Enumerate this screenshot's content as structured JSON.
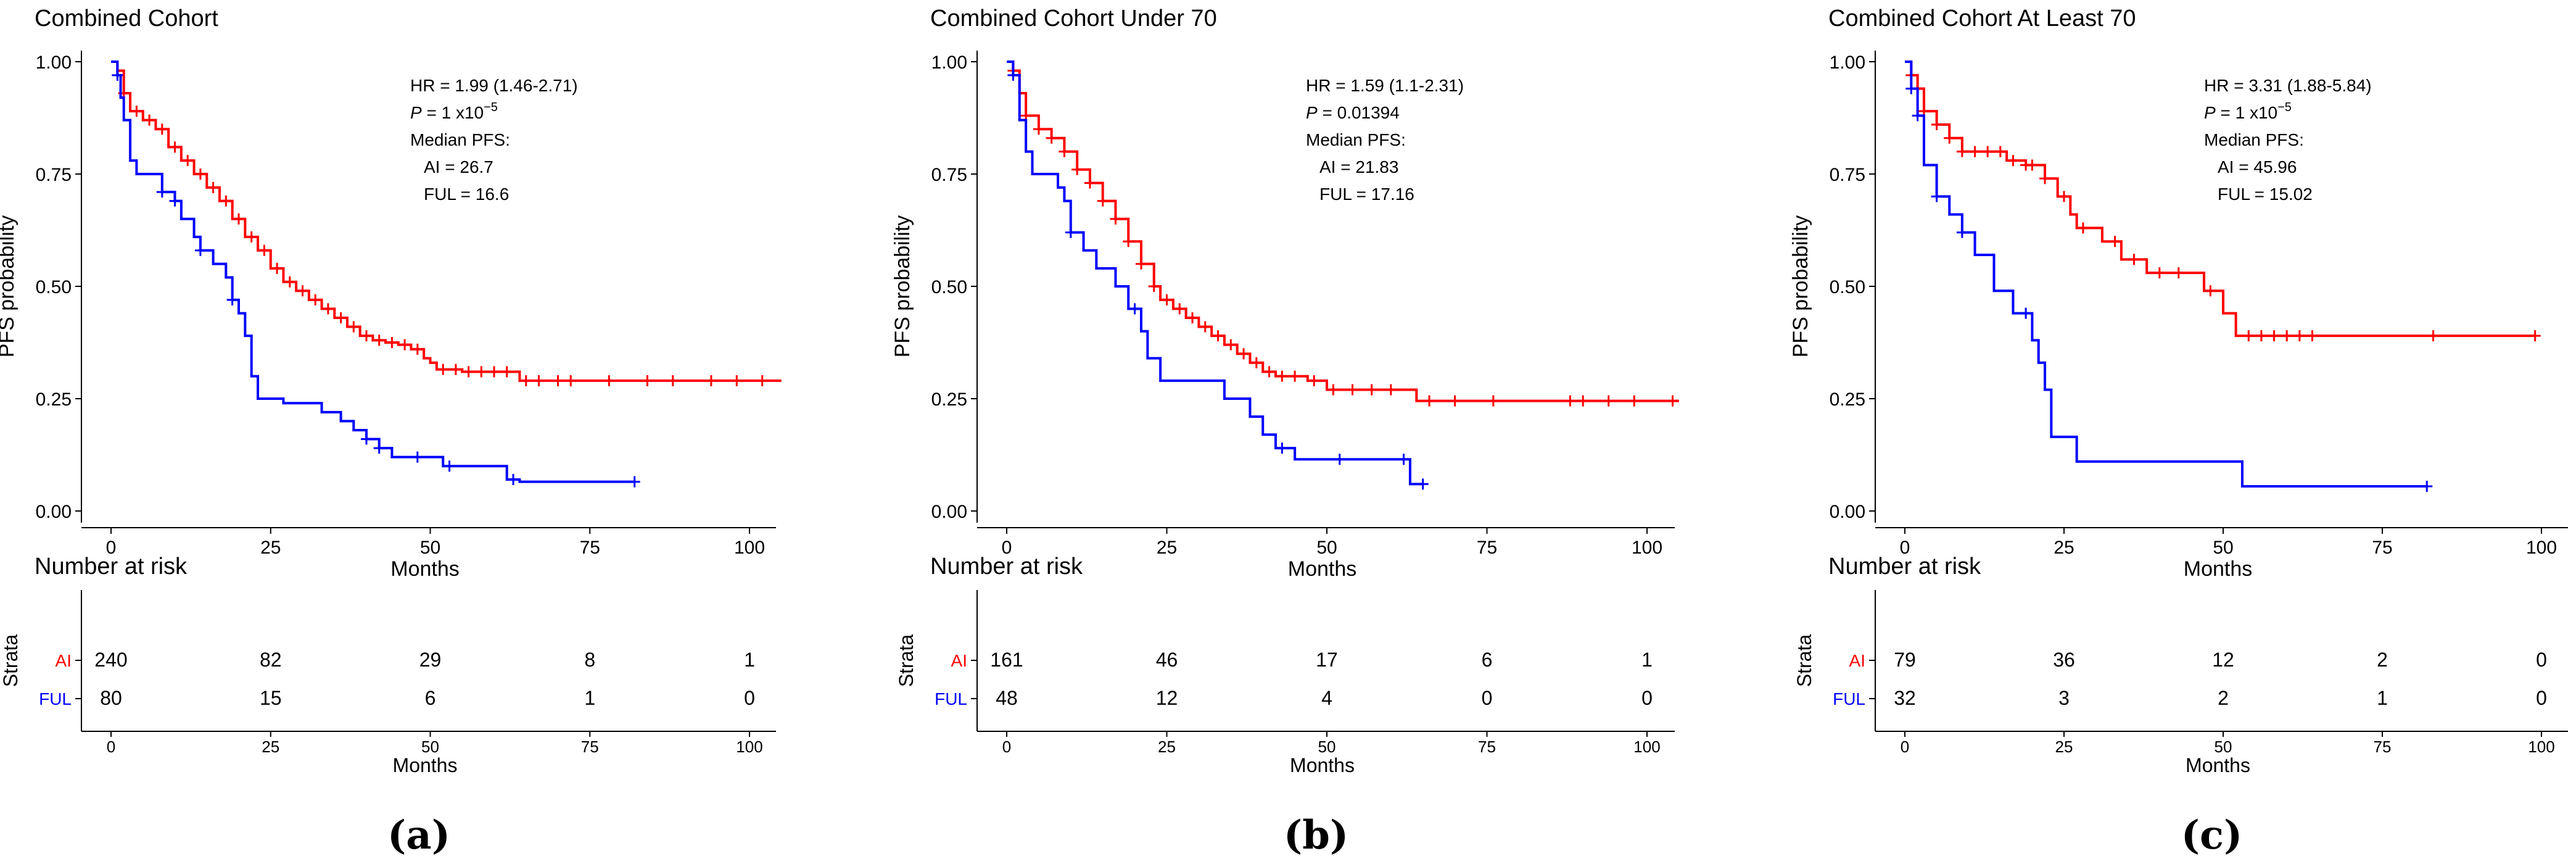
{
  "colors": {
    "AI": "#ff0000",
    "FUL": "#0000ff",
    "axis": "#000000"
  },
  "chart_data": [
    {
      "type": "line",
      "panel": "(a)",
      "title": "Combined Cohort",
      "xlabel": "Months",
      "ylabel": "PFS probability",
      "xlim": [
        0,
        105
      ],
      "ylim": [
        0,
        1
      ],
      "x_ticks": [
        "0",
        "25",
        "50",
        "75",
        "100"
      ],
      "y_ticks": [
        "0.00",
        "0.25",
        "0.50",
        "0.75",
        "1.00"
      ],
      "annotation": {
        "hr": "HR = 1.99 (1.46-2.71)",
        "p_label": "P",
        "p_value": " = 1 x10",
        "p_exp": "−5",
        "median_label": "Median PFS:",
        "ai_line": "AI  = 26.7",
        "ful_line": "FUL  = 16.6"
      },
      "series": [
        {
          "name": "AI",
          "color": "#ff0000",
          "steps": [
            [
              0,
              1
            ],
            [
              1,
              0.98
            ],
            [
              2,
              0.93
            ],
            [
              3,
              0.89
            ],
            [
              5,
              0.87
            ],
            [
              7,
              0.85
            ],
            [
              9,
              0.81
            ],
            [
              11,
              0.78
            ],
            [
              13,
              0.75
            ],
            [
              15,
              0.72
            ],
            [
              17,
              0.69
            ],
            [
              19,
              0.65
            ],
            [
              21,
              0.61
            ],
            [
              23,
              0.58
            ],
            [
              25,
              0.54
            ],
            [
              27,
              0.51
            ],
            [
              29,
              0.49
            ],
            [
              31,
              0.47
            ],
            [
              33,
              0.45
            ],
            [
              35,
              0.43
            ],
            [
              37,
              0.41
            ],
            [
              39,
              0.39
            ],
            [
              41,
              0.38
            ],
            [
              43,
              0.375
            ],
            [
              45,
              0.37
            ],
            [
              47,
              0.36
            ],
            [
              49,
              0.34
            ],
            [
              50,
              0.33
            ],
            [
              51,
              0.315
            ],
            [
              55,
              0.31
            ],
            [
              63,
              0.31
            ],
            [
              64,
              0.29
            ],
            [
              105,
              0.29
            ]
          ],
          "censors": [
            2,
            4,
            6,
            8,
            10,
            12,
            14,
            16,
            18,
            20,
            22,
            24,
            26,
            28,
            30,
            32,
            34,
            36,
            38,
            40,
            42,
            44,
            46,
            48,
            52,
            54,
            56,
            58,
            60,
            62,
            65,
            67,
            70,
            72,
            78,
            84,
            88,
            94,
            98,
            102
          ]
        },
        {
          "name": "FUL",
          "color": "#0000ff",
          "steps": [
            [
              0,
              1
            ],
            [
              1,
              0.97
            ],
            [
              1.5,
              0.92
            ],
            [
              2,
              0.87
            ],
            [
              3,
              0.78
            ],
            [
              4,
              0.75
            ],
            [
              8,
              0.71
            ],
            [
              10,
              0.69
            ],
            [
              11,
              0.65
            ],
            [
              13,
              0.61
            ],
            [
              14,
              0.58
            ],
            [
              16,
              0.55
            ],
            [
              18,
              0.52
            ],
            [
              19,
              0.47
            ],
            [
              20,
              0.44
            ],
            [
              21,
              0.39
            ],
            [
              22,
              0.3
            ],
            [
              23,
              0.25
            ],
            [
              27,
              0.24
            ],
            [
              33,
              0.22
            ],
            [
              36,
              0.2
            ],
            [
              38,
              0.18
            ],
            [
              40,
              0.16
            ],
            [
              42,
              0.14
            ],
            [
              44,
              0.12
            ],
            [
              52,
              0.1
            ],
            [
              62,
              0.07
            ],
            [
              64,
              0.065
            ],
            [
              82,
              0.065
            ]
          ],
          "censors": [
            1,
            8,
            10,
            14,
            19,
            40,
            42,
            48,
            53,
            63,
            82
          ]
        }
      ],
      "risk_table": {
        "title": "Number at risk",
        "strata_label": "Strata",
        "xlabel": "Months",
        "rows": [
          {
            "name": "AI",
            "values": [
              "240",
              "82",
              "29",
              "8",
              "1"
            ]
          },
          {
            "name": "FUL",
            "values": [
              "80",
              "15",
              "6",
              "1",
              "0"
            ]
          }
        ]
      }
    },
    {
      "type": "line",
      "panel": "(b)",
      "title": "Combined Cohort Under 70",
      "xlabel": "Months",
      "ylabel": "PFS probability",
      "xlim": [
        0,
        105
      ],
      "ylim": [
        0,
        1
      ],
      "x_ticks": [
        "0",
        "25",
        "50",
        "75",
        "100"
      ],
      "y_ticks": [
        "0.00",
        "0.25",
        "0.50",
        "0.75",
        "1.00"
      ],
      "annotation": {
        "hr": "HR = 1.59 (1.1-2.31)",
        "p_label": "P",
        "p_value": " = 0.01394",
        "p_exp": "",
        "median_label": "Median PFS:",
        "ai_line": "AI  = 21.83",
        "ful_line": "FUL  = 17.16"
      },
      "series": [
        {
          "name": "AI",
          "color": "#ff0000",
          "steps": [
            [
              0,
              1
            ],
            [
              1,
              0.98
            ],
            [
              2,
              0.93
            ],
            [
              3,
              0.88
            ],
            [
              5,
              0.85
            ],
            [
              7,
              0.83
            ],
            [
              9,
              0.8
            ],
            [
              11,
              0.76
            ],
            [
              13,
              0.73
            ],
            [
              15,
              0.69
            ],
            [
              17,
              0.65
            ],
            [
              19,
              0.6
            ],
            [
              21,
              0.55
            ],
            [
              23,
              0.5
            ],
            [
              24,
              0.47
            ],
            [
              26,
              0.45
            ],
            [
              28,
              0.43
            ],
            [
              30,
              0.41
            ],
            [
              32,
              0.39
            ],
            [
              34,
              0.37
            ],
            [
              36,
              0.35
            ],
            [
              38,
              0.33
            ],
            [
              40,
              0.31
            ],
            [
              42,
              0.3
            ],
            [
              47,
              0.29
            ],
            [
              50,
              0.27
            ],
            [
              63,
              0.27
            ],
            [
              64,
              0.245
            ],
            [
              105,
              0.245
            ]
          ],
          "censors": [
            1,
            3,
            5,
            7,
            9,
            11,
            13,
            15,
            17,
            19,
            21,
            23,
            25,
            27,
            29,
            31,
            33,
            35,
            37,
            39,
            41,
            43,
            45,
            48,
            51,
            54,
            57,
            60,
            66,
            70,
            76,
            88,
            90,
            94,
            98,
            104
          ]
        },
        {
          "name": "FUL",
          "color": "#0000ff",
          "steps": [
            [
              0,
              1
            ],
            [
              1,
              0.97
            ],
            [
              2,
              0.87
            ],
            [
              3,
              0.8
            ],
            [
              4,
              0.75
            ],
            [
              8,
              0.72
            ],
            [
              9,
              0.69
            ],
            [
              10,
              0.62
            ],
            [
              12,
              0.58
            ],
            [
              14,
              0.54
            ],
            [
              17,
              0.5
            ],
            [
              19,
              0.45
            ],
            [
              21,
              0.4
            ],
            [
              22,
              0.34
            ],
            [
              24,
              0.29
            ],
            [
              34,
              0.25
            ],
            [
              38,
              0.21
            ],
            [
              40,
              0.17
            ],
            [
              42,
              0.14
            ],
            [
              45,
              0.115
            ],
            [
              62,
              0.115
            ],
            [
              63,
              0.06
            ],
            [
              65,
              0.06
            ]
          ],
          "censors": [
            1,
            10,
            20,
            43,
            52,
            62,
            65
          ]
        }
      ],
      "risk_table": {
        "title": "Number at risk",
        "strata_label": "Strata",
        "xlabel": "Months",
        "rows": [
          {
            "name": "AI",
            "values": [
              "161",
              "46",
              "17",
              "6",
              "1"
            ]
          },
          {
            "name": "FUL",
            "values": [
              "48",
              "12",
              "4",
              "0",
              "0"
            ]
          }
        ]
      }
    },
    {
      "type": "line",
      "panel": "(c)",
      "title": "Combined Cohort At Least 70",
      "xlabel": "Months",
      "ylabel": "PFS probability",
      "xlim": [
        0,
        100
      ],
      "ylim": [
        0,
        1
      ],
      "x_ticks": [
        "0",
        "25",
        "50",
        "75",
        "100"
      ],
      "y_ticks": [
        "0.00",
        "0.25",
        "0.50",
        "0.75",
        "1.00"
      ],
      "annotation": {
        "hr": "HR = 3.31 (1.88-5.84)",
        "p_label": "P",
        "p_value": " = 1 x10",
        "p_exp": "−5",
        "median_label": "Median PFS:",
        "ai_line": "AI  = 45.96",
        "ful_line": "FUL  = 15.02"
      },
      "series": [
        {
          "name": "AI",
          "color": "#ff0000",
          "steps": [
            [
              0,
              1
            ],
            [
              1,
              0.97
            ],
            [
              2,
              0.94
            ],
            [
              3,
              0.89
            ],
            [
              5,
              0.86
            ],
            [
              7,
              0.83
            ],
            [
              9,
              0.8
            ],
            [
              15,
              0.8
            ],
            [
              16,
              0.78
            ],
            [
              19,
              0.77
            ],
            [
              22,
              0.74
            ],
            [
              24,
              0.7
            ],
            [
              26,
              0.66
            ],
            [
              27,
              0.63
            ],
            [
              31,
              0.6
            ],
            [
              34,
              0.56
            ],
            [
              38,
              0.53
            ],
            [
              45,
              0.53
            ],
            [
              47,
              0.49
            ],
            [
              50,
              0.44
            ],
            [
              52,
              0.39
            ],
            [
              99,
              0.39
            ]
          ],
          "censors": [
            1,
            3,
            5,
            7,
            9,
            11,
            13,
            15,
            17,
            19,
            20,
            22,
            25,
            28,
            33,
            36,
            40,
            43,
            48,
            54,
            56,
            58,
            60,
            62,
            64,
            83,
            99
          ]
        },
        {
          "name": "FUL",
          "color": "#0000ff",
          "steps": [
            [
              0,
              1
            ],
            [
              1,
              0.94
            ],
            [
              2,
              0.88
            ],
            [
              3,
              0.77
            ],
            [
              5,
              0.7
            ],
            [
              7,
              0.66
            ],
            [
              9,
              0.62
            ],
            [
              11,
              0.57
            ],
            [
              14,
              0.49
            ],
            [
              17,
              0.44
            ],
            [
              20,
              0.38
            ],
            [
              21,
              0.33
            ],
            [
              22,
              0.27
            ],
            [
              23,
              0.165
            ],
            [
              27,
              0.11
            ],
            [
              52,
              0.11
            ],
            [
              53,
              0.055
            ],
            [
              82,
              0.055
            ]
          ],
          "censors": [
            1,
            2,
            5,
            9,
            19,
            82
          ]
        }
      ],
      "risk_table": {
        "title": "Number at risk",
        "strata_label": "Strata",
        "xlabel": "Months",
        "rows": [
          {
            "name": "AI",
            "values": [
              "79",
              "36",
              "12",
              "2",
              "0"
            ]
          },
          {
            "name": "FUL",
            "values": [
              "32",
              "3",
              "2",
              "1",
              "0"
            ]
          }
        ]
      }
    }
  ]
}
